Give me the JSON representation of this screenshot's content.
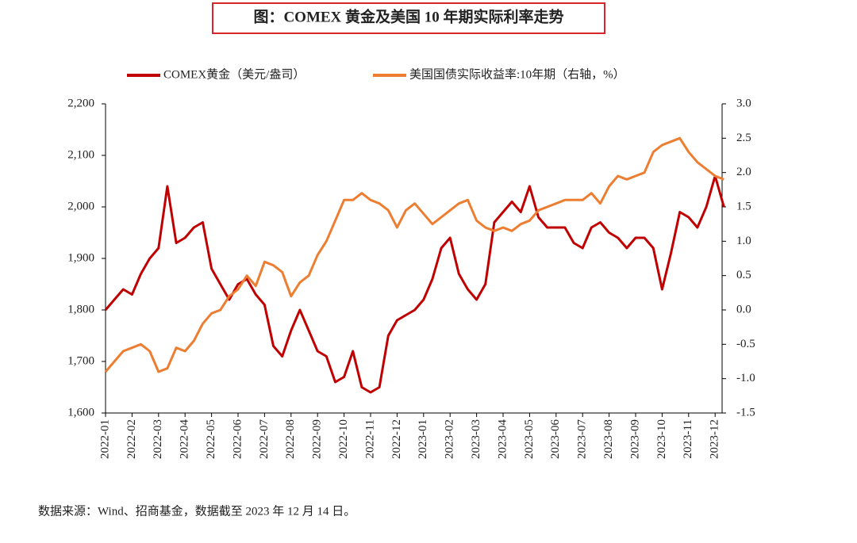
{
  "chart_data": {
    "type": "line",
    "title": "图：COMEX 黄金及美国 10 年期实际利率走势",
    "source": "数据来源：Wind、招商基金，数据截至 2023 年 12 月 14 日。",
    "x": [
      "2022-01",
      null,
      null,
      "2022-02",
      null,
      null,
      "2022-03",
      null,
      null,
      "2022-04",
      null,
      null,
      "2022-05",
      null,
      null,
      "2022-06",
      null,
      null,
      "2022-07",
      null,
      null,
      "2022-08",
      null,
      null,
      "2022-09",
      null,
      null,
      "2022-10",
      null,
      null,
      "2022-11",
      null,
      null,
      "2022-12",
      null,
      null,
      "2023-01",
      null,
      null,
      "2023-02",
      null,
      null,
      "2023-03",
      null,
      null,
      "2023-04",
      null,
      null,
      "2023-05",
      null,
      null,
      "2023-06",
      null,
      null,
      "2023-07",
      null,
      null,
      "2023-08",
      null,
      null,
      "2023-09",
      null,
      null,
      "2023-10",
      null,
      null,
      "2023-11",
      null,
      null,
      "2023-12",
      null
    ],
    "series": [
      {
        "name": "COMEX黄金（美元/盎司）",
        "color": "#c00000",
        "axis": "y",
        "values": [
          1800,
          1820,
          1840,
          1830,
          1870,
          1900,
          1920,
          2040,
          1930,
          1940,
          1960,
          1970,
          1880,
          1850,
          1820,
          1850,
          1860,
          1830,
          1810,
          1730,
          1710,
          1760,
          1800,
          1760,
          1720,
          1710,
          1660,
          1670,
          1720,
          1650,
          1640,
          1650,
          1750,
          1780,
          1790,
          1800,
          1820,
          1860,
          1920,
          1940,
          1870,
          1840,
          1820,
          1850,
          1970,
          1990,
          2010,
          1990,
          2040,
          1980,
          1960,
          1960,
          1960,
          1930,
          1920,
          1960,
          1970,
          1950,
          1940,
          1920,
          1940,
          1940,
          1920,
          1840,
          1910,
          1990,
          1980,
          1960,
          2000,
          2060,
          2000
        ]
      },
      {
        "name": "美国国债实际收益率:10年期（右轴，%）",
        "color": "#ed7d31",
        "axis": "y2",
        "values": [
          -0.9,
          -0.75,
          -0.6,
          -0.55,
          -0.5,
          -0.6,
          -0.9,
          -0.85,
          -0.55,
          -0.6,
          -0.45,
          -0.2,
          -0.05,
          0.0,
          0.2,
          0.3,
          0.5,
          0.35,
          0.7,
          0.65,
          0.55,
          0.2,
          0.4,
          0.5,
          0.8,
          1.0,
          1.3,
          1.6,
          1.6,
          1.7,
          1.6,
          1.55,
          1.45,
          1.2,
          1.45,
          1.55,
          1.4,
          1.25,
          1.35,
          1.45,
          1.55,
          1.6,
          1.3,
          1.2,
          1.15,
          1.2,
          1.15,
          1.25,
          1.3,
          1.45,
          1.5,
          1.55,
          1.6,
          1.6,
          1.6,
          1.7,
          1.55,
          1.8,
          1.95,
          1.9,
          1.95,
          2.0,
          2.3,
          2.4,
          2.45,
          2.5,
          2.3,
          2.15,
          2.05,
          1.95,
          1.9
        ]
      }
    ],
    "ylim": [
      1600,
      2200
    ],
    "yticks": [
      {
        "value": 1600,
        "label": "1,600"
      },
      {
        "value": 1700,
        "label": "1,700"
      },
      {
        "value": 1800,
        "label": "1,800"
      },
      {
        "value": 1900,
        "label": "1,900"
      },
      {
        "value": 2000,
        "label": "2,000"
      },
      {
        "value": 2100,
        "label": "2,100"
      },
      {
        "value": 2200,
        "label": "2,200"
      }
    ],
    "y2lim": [
      -1.5,
      3.0
    ],
    "y2ticks": [
      {
        "value": -1.5,
        "label": "-1.5"
      },
      {
        "value": -1,
        "label": "-1.0"
      },
      -0.5,
      {
        "value": 0,
        "label": "0.0"
      },
      0.5,
      {
        "value": 1,
        "label": "1.0"
      },
      1.5,
      {
        "value": 2,
        "label": "2.0"
      },
      2.5,
      {
        "value": 3,
        "label": "3.0"
      }
    ],
    "legend": "top",
    "grid": false
  }
}
